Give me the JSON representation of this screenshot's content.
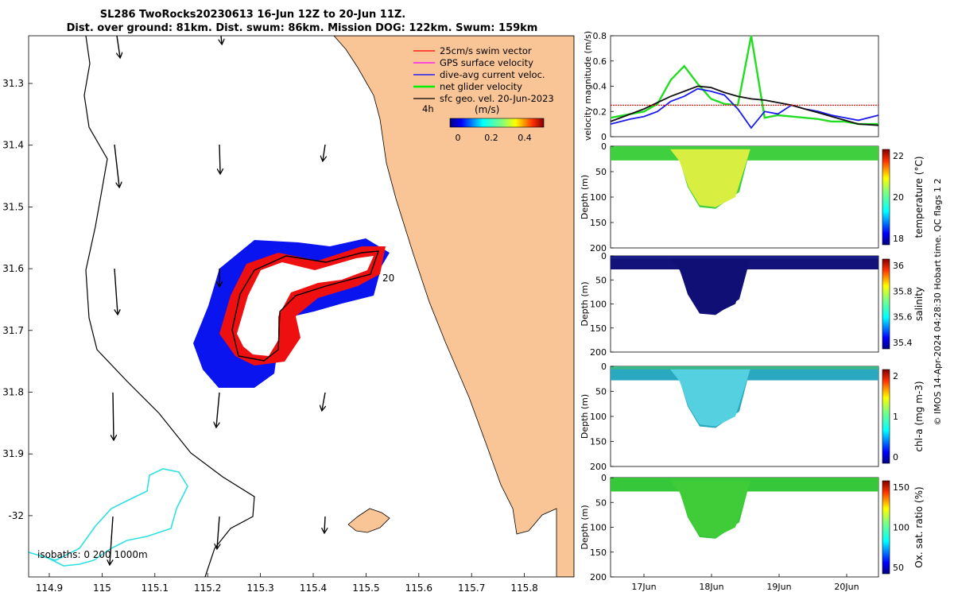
{
  "title": {
    "line1": "SL286 TwoRocks20230613 16-Jun 12Z to 20-Jun 11Z.",
    "line2": "Dist. over ground: 81km. Dist. swum: 86km. Mission DOG: 122km. Swum: 159km"
  },
  "map": {
    "lon_ticks": [
      "114.9",
      "115",
      "115.1",
      "115.2",
      "115.3",
      "115.4",
      "115.5",
      "115.6",
      "115.7",
      "115.8"
    ],
    "lat_ticks": [
      "31.3",
      "31.4",
      "31.5",
      "31.6",
      "31.7",
      "31.8",
      "31.9",
      "-32"
    ],
    "legend": [
      {
        "label": "25cm/s swim vector",
        "color": "#ff0000"
      },
      {
        "label": "GPS surface velocity",
        "color": "#ff00ff"
      },
      {
        "label": "dive-avg current veloc.",
        "color": "#0000ff"
      },
      {
        "label": "net glider velocity",
        "color": "#00ee00"
      },
      {
        "label": "sfc geo. vel. 20-Jun-2023",
        "color": "#000000"
      }
    ],
    "time_marker": "4h",
    "day_marker": "20",
    "colorbar": {
      "unit": "(m/s)",
      "ticks": [
        "0",
        "0.2",
        "0.4"
      ]
    },
    "isobath_label": "isobaths: 0   200  1000m"
  },
  "chart_data": [
    {
      "type": "line",
      "title": "",
      "xlabel": "",
      "ylabel": "velocity magnitude (m/s)",
      "ylim": [
        0,
        0.8
      ],
      "yticks": [
        "0",
        "0.2",
        "0.4",
        "0.6",
        "0.8"
      ],
      "x": [
        16.5,
        16.8,
        17.0,
        17.2,
        17.4,
        17.6,
        17.8,
        18.0,
        18.2,
        18.4,
        18.6,
        18.8,
        19.0,
        19.2,
        19.4,
        19.6,
        19.8,
        20.0,
        20.2,
        20.5
      ],
      "series": [
        {
          "name": "net glider velocity",
          "color": "#22dd22",
          "values": [
            0.15,
            0.18,
            0.2,
            0.26,
            0.45,
            0.56,
            0.42,
            0.3,
            0.26,
            0.25,
            0.8,
            0.15,
            0.17,
            0.16,
            0.15,
            0.14,
            0.12,
            0.12,
            0.1,
            0.1
          ]
        },
        {
          "name": "dive-avg current veloc.",
          "color": "#1a1aee",
          "values": [
            0.1,
            0.14,
            0.16,
            0.2,
            0.28,
            0.32,
            0.38,
            0.36,
            0.33,
            0.22,
            0.07,
            0.2,
            0.18,
            0.25,
            0.22,
            0.2,
            0.17,
            0.15,
            0.13,
            0.17
          ]
        },
        {
          "name": "sfc geo. vel.",
          "color": "#111111",
          "values": [
            0.12,
            0.18,
            0.22,
            0.27,
            0.32,
            0.36,
            0.4,
            0.39,
            0.35,
            0.32,
            0.3,
            0.29,
            0.27,
            0.25,
            0.22,
            0.19,
            0.16,
            0.13,
            0.1,
            0.09
          ]
        },
        {
          "name": "swim",
          "color": "#dd0000",
          "values": [
            0.25,
            0.25,
            0.25,
            0.25,
            0.25,
            0.25,
            0.25,
            0.25,
            0.25,
            0.25,
            0.25,
            0.25,
            0.25,
            0.25,
            0.25,
            0.25,
            0.25,
            0.25,
            0.25,
            0.25
          ]
        }
      ]
    },
    {
      "type": "heatmap",
      "ylabel": "Depth (m)",
      "cbar_label": "temperature (°C)",
      "cbar_ticks": [
        "22",
        "20",
        "18"
      ],
      "yticks": [
        "0",
        "50",
        "100",
        "150",
        "200"
      ],
      "ylim": [
        200,
        0
      ]
    },
    {
      "type": "heatmap",
      "ylabel": "Depth (m)",
      "cbar_label": "salinity",
      "cbar_ticks": [
        "36",
        "35.8",
        "35.6",
        "35.4"
      ],
      "yticks": [
        "0",
        "50",
        "100",
        "150",
        "200"
      ],
      "ylim": [
        200,
        0
      ]
    },
    {
      "type": "heatmap",
      "ylabel": "Depth (m)",
      "cbar_label": "chl-a (mg m-3)",
      "cbar_ticks": [
        "2",
        "1",
        "0"
      ],
      "yticks": [
        "0",
        "50",
        "100",
        "150",
        "200"
      ],
      "ylim": [
        200,
        0
      ]
    },
    {
      "type": "heatmap",
      "ylabel": "Depth (m)",
      "cbar_label": "Ox. sat. ratio (%)",
      "cbar_ticks": [
        "150",
        "100",
        "50"
      ],
      "yticks": [
        "0",
        "50",
        "100",
        "150",
        "200"
      ],
      "ylim": [
        200,
        0
      ]
    }
  ],
  "time_ticks": [
    "17Jun",
    "18Jun",
    "19Jun",
    "20Jun"
  ],
  "side_caption": "© IMOS 14-Apr-2024 04:28:30 Hobart time. QC flags 1  2",
  "colors": {
    "land": "#f9c597",
    "isobath_200": "#000000",
    "isobath_1000": "#2fe0e0"
  }
}
